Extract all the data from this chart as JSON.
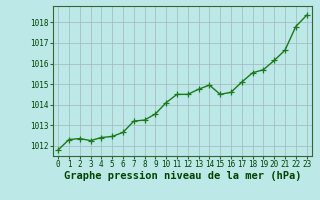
{
  "x": [
    0,
    1,
    2,
    3,
    4,
    5,
    6,
    7,
    8,
    9,
    10,
    11,
    12,
    13,
    14,
    15,
    16,
    17,
    18,
    19,
    20,
    21,
    22,
    23
  ],
  "y": [
    1011.8,
    1012.3,
    1012.35,
    1012.25,
    1012.4,
    1012.45,
    1012.65,
    1013.2,
    1013.25,
    1013.55,
    1014.1,
    1014.5,
    1014.5,
    1014.75,
    1014.95,
    1014.5,
    1014.6,
    1015.1,
    1015.55,
    1015.7,
    1016.15,
    1016.65,
    1017.8,
    1018.35
  ],
  "line_color": "#1a7a1a",
  "marker_color": "#1a7a1a",
  "bg_color": "#bde8e8",
  "grid_color": "#a0b8b8",
  "xlabel": "Graphe pression niveau de la mer (hPa)",
  "xlabel_color": "#004400",
  "xlabel_fontsize": 7.5,
  "tick_label_color": "#004400",
  "ylim": [
    1011.5,
    1018.8
  ],
  "yticks": [
    1012,
    1013,
    1014,
    1015,
    1016,
    1017,
    1018
  ],
  "xticks": [
    0,
    1,
    2,
    3,
    4,
    5,
    6,
    7,
    8,
    9,
    10,
    11,
    12,
    13,
    14,
    15,
    16,
    17,
    18,
    19,
    20,
    21,
    22,
    23
  ],
  "tick_fontsize": 5.5,
  "marker_size": 4,
  "line_width": 1.0
}
